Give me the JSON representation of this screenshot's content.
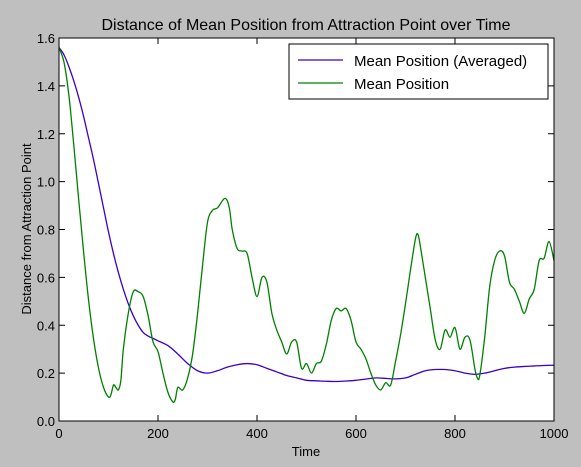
{
  "chart_data": {
    "type": "line",
    "title": "Distance of Mean Position from Attraction Point over Time",
    "xlabel": "Time",
    "ylabel": "Distance from Attraction Point",
    "xlim": [
      0,
      1000
    ],
    "ylim": [
      0.0,
      1.6
    ],
    "xticks": [
      "0",
      "200",
      "400",
      "600",
      "800",
      "1000"
    ],
    "yticks": [
      "0.0",
      "0.2",
      "0.4",
      "0.6",
      "0.8",
      "1.0",
      "1.2",
      "1.4",
      "1.6"
    ],
    "xtick_values": [
      0,
      200,
      400,
      600,
      800,
      1000
    ],
    "ytick_values": [
      0.0,
      0.2,
      0.4,
      0.6,
      0.8,
      1.0,
      1.2,
      1.4,
      1.6
    ],
    "grid": false,
    "legend_position": "top-right",
    "background": "#ffffff",
    "figure_background": "#bfbfbf",
    "series": [
      {
        "name": "Mean Position (Averaged)",
        "color": "#3a00c8",
        "x": [
          0,
          10,
          20,
          30,
          40,
          50,
          60,
          70,
          80,
          90,
          100,
          110,
          120,
          130,
          140,
          150,
          160,
          170,
          180,
          190,
          200,
          220,
          240,
          260,
          280,
          300,
          320,
          340,
          360,
          380,
          400,
          420,
          440,
          460,
          480,
          500,
          520,
          540,
          560,
          580,
          600,
          620,
          640,
          660,
          680,
          700,
          720,
          740,
          760,
          780,
          800,
          820,
          840,
          860,
          880,
          900,
          920,
          940,
          960,
          980,
          1000
        ],
        "y": [
          1.56,
          1.53,
          1.48,
          1.42,
          1.35,
          1.27,
          1.18,
          1.09,
          0.99,
          0.89,
          0.79,
          0.7,
          0.62,
          0.55,
          0.49,
          0.44,
          0.4,
          0.37,
          0.355,
          0.345,
          0.335,
          0.315,
          0.28,
          0.24,
          0.21,
          0.2,
          0.21,
          0.225,
          0.235,
          0.24,
          0.235,
          0.22,
          0.205,
          0.19,
          0.18,
          0.17,
          0.168,
          0.166,
          0.165,
          0.167,
          0.17,
          0.175,
          0.18,
          0.178,
          0.176,
          0.18,
          0.195,
          0.21,
          0.215,
          0.215,
          0.21,
          0.2,
          0.195,
          0.2,
          0.21,
          0.22,
          0.225,
          0.228,
          0.23,
          0.232,
          0.233
        ]
      },
      {
        "name": "Mean Position",
        "color": "#008000",
        "x": [
          0,
          10,
          20,
          30,
          40,
          50,
          60,
          70,
          80,
          90,
          100,
          105,
          110,
          115,
          120,
          125,
          130,
          140,
          150,
          160,
          170,
          180,
          190,
          200,
          210,
          220,
          230,
          235,
          240,
          250,
          260,
          270,
          280,
          290,
          300,
          310,
          320,
          330,
          335,
          340,
          345,
          350,
          360,
          370,
          380,
          390,
          400,
          410,
          420,
          430,
          440,
          450,
          460,
          470,
          480,
          490,
          500,
          510,
          520,
          530,
          540,
          550,
          560,
          570,
          580,
          590,
          600,
          610,
          620,
          630,
          640,
          650,
          660,
          670,
          680,
          690,
          700,
          710,
          720,
          725,
          730,
          740,
          750,
          760,
          770,
          780,
          790,
          800,
          810,
          820,
          830,
          840,
          845,
          850,
          860,
          870,
          880,
          890,
          900,
          910,
          920,
          930,
          940,
          950,
          960,
          970,
          980,
          990,
          1000
        ],
        "y": [
          1.56,
          1.5,
          1.36,
          1.15,
          0.92,
          0.7,
          0.5,
          0.34,
          0.22,
          0.14,
          0.1,
          0.11,
          0.15,
          0.14,
          0.13,
          0.17,
          0.3,
          0.45,
          0.54,
          0.54,
          0.52,
          0.44,
          0.33,
          0.29,
          0.2,
          0.12,
          0.08,
          0.09,
          0.14,
          0.13,
          0.18,
          0.28,
          0.45,
          0.65,
          0.83,
          0.88,
          0.89,
          0.92,
          0.93,
          0.92,
          0.88,
          0.8,
          0.72,
          0.71,
          0.7,
          0.6,
          0.52,
          0.6,
          0.58,
          0.45,
          0.38,
          0.33,
          0.28,
          0.33,
          0.33,
          0.22,
          0.24,
          0.2,
          0.24,
          0.25,
          0.32,
          0.42,
          0.47,
          0.46,
          0.47,
          0.42,
          0.33,
          0.3,
          0.26,
          0.2,
          0.15,
          0.13,
          0.16,
          0.15,
          0.25,
          0.36,
          0.49,
          0.63,
          0.76,
          0.78,
          0.73,
          0.6,
          0.47,
          0.34,
          0.3,
          0.38,
          0.35,
          0.39,
          0.3,
          0.35,
          0.34,
          0.22,
          0.18,
          0.19,
          0.35,
          0.56,
          0.67,
          0.71,
          0.69,
          0.58,
          0.55,
          0.5,
          0.45,
          0.51,
          0.55,
          0.67,
          0.68,
          0.75,
          0.67
        ]
      }
    ]
  }
}
